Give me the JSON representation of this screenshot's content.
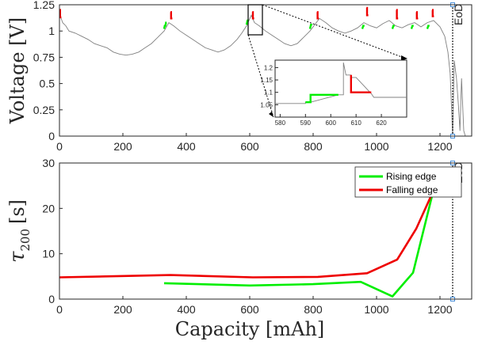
{
  "colors": {
    "rising": "#00ee00",
    "falling": "#ee0000",
    "voltage": "#808080",
    "axis": "#262626",
    "eod_line": "#000000",
    "eod_marker": "#4a90d9"
  },
  "chart_data": [
    {
      "type": "line",
      "panel": "top",
      "title": "",
      "xlabel": "",
      "ylabel": "Voltage [V]",
      "xlim": [
        0,
        1300
      ],
      "ylim": [
        0,
        1.25
      ],
      "xticks": [
        "0",
        "200",
        "400",
        "600",
        "800",
        "1000",
        "1200"
      ],
      "yticks": [
        "0",
        "0.25",
        "0.5",
        "0.75",
        "1",
        "1.25"
      ],
      "annotation": "EoD",
      "eod_x": 1240,
      "voltage_trace": [
        [
          0,
          1.22
        ],
        [
          2,
          1.15
        ],
        [
          10,
          1.08
        ],
        [
          20,
          1.05
        ],
        [
          30,
          1.0
        ],
        [
          50,
          0.98
        ],
        [
          70,
          0.95
        ],
        [
          90,
          0.92
        ],
        [
          110,
          0.88
        ],
        [
          130,
          0.86
        ],
        [
          150,
          0.84
        ],
        [
          170,
          0.8
        ],
        [
          190,
          0.78
        ],
        [
          210,
          0.77
        ],
        [
          230,
          0.78
        ],
        [
          250,
          0.8
        ],
        [
          270,
          0.84
        ],
        [
          290,
          0.88
        ],
        [
          310,
          0.94
        ],
        [
          330,
          1.0
        ],
        [
          345,
          1.08
        ],
        [
          360,
          1.05
        ],
        [
          380,
          1.0
        ],
        [
          400,
          0.96
        ],
        [
          420,
          0.92
        ],
        [
          440,
          0.88
        ],
        [
          460,
          0.84
        ],
        [
          480,
          0.82
        ],
        [
          500,
          0.8
        ],
        [
          520,
          0.82
        ],
        [
          540,
          0.86
        ],
        [
          560,
          0.92
        ],
        [
          575,
          0.98
        ],
        [
          590,
          1.05
        ],
        [
          605,
          1.15
        ],
        [
          615,
          1.08
        ],
        [
          630,
          1.05
        ],
        [
          650,
          1.0
        ],
        [
          670,
          0.96
        ],
        [
          690,
          0.92
        ],
        [
          710,
          0.88
        ],
        [
          730,
          0.86
        ],
        [
          750,
          0.88
        ],
        [
          770,
          0.94
        ],
        [
          790,
          1.0
        ],
        [
          805,
          1.06
        ],
        [
          820,
          1.12
        ],
        [
          840,
          1.08
        ],
        [
          860,
          1.03
        ],
        [
          880,
          1.0
        ],
        [
          900,
          0.98
        ],
        [
          920,
          1.0
        ],
        [
          940,
          1.03
        ],
        [
          960,
          1.08
        ],
        [
          980,
          1.05
        ],
        [
          1000,
          1.03
        ],
        [
          1020,
          1.07
        ],
        [
          1040,
          1.1
        ],
        [
          1060,
          1.05
        ],
        [
          1080,
          1.03
        ],
        [
          1100,
          1.06
        ],
        [
          1120,
          1.08
        ],
        [
          1140,
          1.04
        ],
        [
          1160,
          1.08
        ],
        [
          1180,
          1.1
        ],
        [
          1200,
          1.04
        ],
        [
          1215,
          0.95
        ],
        [
          1225,
          0.8
        ],
        [
          1232,
          0.6
        ],
        [
          1236,
          0.3
        ],
        [
          1240,
          0.0
        ],
        [
          1245,
          0.72
        ],
        [
          1252,
          0.55
        ],
        [
          1258,
          0.3
        ],
        [
          1263,
          0.05
        ],
        [
          1268,
          0.55
        ],
        [
          1275,
          0.05
        ],
        [
          1280,
          0.0
        ]
      ],
      "rising_segments": [
        [
          [
            330,
            1.02
          ],
          [
            332,
            1.05
          ],
          [
            334,
            1.05
          ],
          [
            336,
            1.08
          ],
          [
            338,
            1.08
          ]
        ],
        [
          [
            590,
            1.06
          ],
          [
            593,
            1.1
          ],
          [
            597,
            1.1
          ]
        ],
        [
          [
            790,
            1.02
          ],
          [
            793,
            1.06
          ],
          [
            797,
            1.06
          ]
        ],
        [
          [
            955,
            1.02
          ],
          [
            958,
            1.05
          ],
          [
            962,
            1.05
          ]
        ],
        [
          [
            1050,
            1.02
          ],
          [
            1053,
            1.05
          ],
          [
            1057,
            1.05
          ]
        ],
        [
          [
            1110,
            1.02
          ],
          [
            1113,
            1.05
          ],
          [
            1117,
            1.05
          ]
        ],
        [
          [
            1160,
            1.02
          ],
          [
            1163,
            1.05
          ],
          [
            1167,
            1.05
          ]
        ]
      ],
      "falling_segments": [
        [
          [
            0,
            1.2
          ],
          [
            2,
            1.2
          ],
          [
            2,
            1.13
          ],
          [
            6,
            1.13
          ]
        ],
        [
          [
            350,
            1.18
          ],
          [
            352,
            1.18
          ],
          [
            352,
            1.12
          ],
          [
            356,
            1.12
          ]
        ],
        [
          [
            608,
            1.18
          ],
          [
            610,
            1.18
          ],
          [
            610,
            1.12
          ],
          [
            614,
            1.12
          ]
        ],
        [
          [
            812,
            1.18
          ],
          [
            814,
            1.18
          ],
          [
            814,
            1.12
          ],
          [
            818,
            1.12
          ]
        ],
        [
          [
            968,
            1.22
          ],
          [
            970,
            1.22
          ],
          [
            970,
            1.15
          ],
          [
            974,
            1.15
          ]
        ],
        [
          [
            1062,
            1.2
          ],
          [
            1064,
            1.2
          ],
          [
            1064,
            1.12
          ],
          [
            1068,
            1.12
          ]
        ],
        [
          [
            1125,
            1.18
          ],
          [
            1127,
            1.18
          ],
          [
            1127,
            1.12
          ],
          [
            1131,
            1.12
          ]
        ],
        [
          [
            1175,
            1.2
          ],
          [
            1177,
            1.2
          ],
          [
            1177,
            1.14
          ],
          [
            1181,
            1.14
          ]
        ]
      ]
    },
    {
      "type": "line",
      "panel": "inset",
      "xlim": [
        578,
        630
      ],
      "ylim": [
        1.0,
        1.23
      ],
      "xticks": [
        "580",
        "590",
        "600",
        "610",
        "620"
      ],
      "yticks": [
        "1.05",
        "1.1",
        "1.15",
        "1.2"
      ],
      "voltage_trace": [
        [
          578,
          1.055
        ],
        [
          590,
          1.055
        ],
        [
          590,
          1.06
        ],
        [
          592,
          1.06
        ],
        [
          603,
          1.09
        ],
        [
          605,
          1.09
        ],
        [
          605,
          1.22
        ],
        [
          606,
          1.17
        ],
        [
          608,
          1.17
        ],
        [
          608,
          1.16
        ],
        [
          610,
          1.16
        ],
        [
          616,
          1.095
        ],
        [
          617,
          1.08
        ],
        [
          630,
          1.08
        ]
      ],
      "rising": [
        [
          590,
          1.06
        ],
        [
          592,
          1.06
        ],
        [
          592,
          1.09
        ],
        [
          603,
          1.09
        ]
      ],
      "falling": [
        [
          608,
          1.17
        ],
        [
          608,
          1.1
        ],
        [
          616,
          1.1
        ]
      ]
    },
    {
      "type": "line",
      "panel": "bottom",
      "title": "",
      "xlabel": "Capacity [mAh]",
      "ylabel": "τ200 [s]",
      "ylabel_main": "τ",
      "ylabel_sub": "200",
      "ylabel_unit": "[s]",
      "xlim": [
        0,
        1300
      ],
      "ylim": [
        0,
        30
      ],
      "xticks": [
        "0",
        "200",
        "400",
        "600",
        "800",
        "1000",
        "1200"
      ],
      "yticks": [
        "0",
        "10",
        "20",
        "30"
      ],
      "annotation": "EoD",
      "eod_x": 1240,
      "legend_position": "top-right",
      "series": [
        {
          "name": "Rising edge",
          "color_key": "rising",
          "x": [
            330,
            600,
            800,
            950,
            1050,
            1115,
            1190
          ],
          "values": [
            3.5,
            3.0,
            3.3,
            3.8,
            0.6,
            5.8,
            27.0
          ]
        },
        {
          "name": "Falling edge",
          "color_key": "falling",
          "x": [
            0,
            350,
            610,
            815,
            970,
            1065,
            1125,
            1180
          ],
          "values": [
            4.8,
            5.3,
            4.8,
            4.9,
            5.7,
            8.7,
            15.5,
            24.0
          ]
        }
      ]
    }
  ]
}
